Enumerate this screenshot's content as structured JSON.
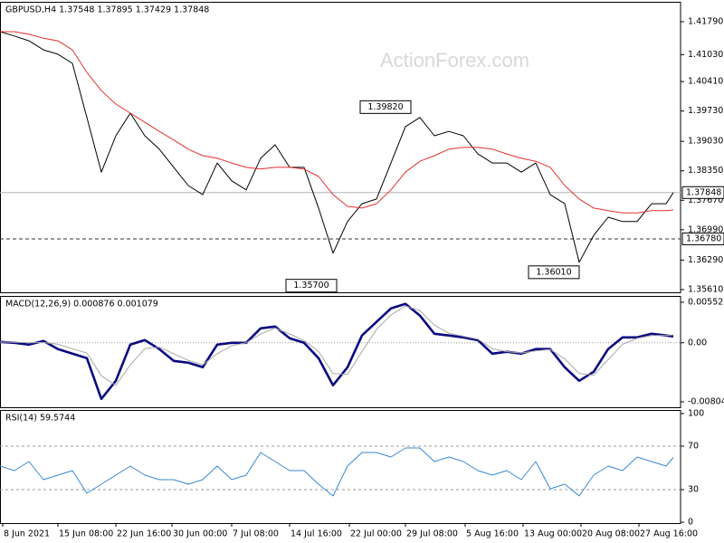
{
  "chart_data": [
    {
      "type": "line",
      "title": "GBPUSD,H4  1.37548 1.37895 1.37429 1.37848",
      "watermark": "ActionForex.com",
      "x": [
        0,
        8,
        16,
        24,
        32,
        40,
        48,
        56,
        64,
        72,
        80,
        88,
        96,
        104,
        112,
        120,
        128,
        136,
        144,
        152,
        160,
        168,
        176,
        184,
        192,
        200,
        208,
        216,
        224,
        232,
        240,
        248,
        256,
        264,
        272,
        280,
        288,
        296,
        304,
        312,
        320,
        328,
        336,
        344,
        352,
        360,
        368,
        372
      ],
      "xlim": [
        0,
        376
      ],
      "series": [
        {
          "color": "#000000",
          "values": [
            1.4156,
            1.4146,
            1.4135,
            1.4114,
            1.4104,
            1.4083,
            1.3958,
            1.3832,
            1.3916,
            1.3968,
            1.3916,
            1.3885,
            1.3843,
            1.3801,
            1.378,
            1.3853,
            1.3812,
            1.3791,
            1.3864,
            1.3895,
            1.3843,
            1.3843,
            1.3749,
            1.3645,
            1.3718,
            1.3759,
            1.377,
            1.3853,
            1.3937,
            1.3958,
            1.3916,
            1.3926,
            1.3916,
            1.3874,
            1.3853,
            1.3853,
            1.3832,
            1.3853,
            1.378,
            1.3759,
            1.3624,
            1.3686,
            1.3728,
            1.3718,
            1.3718,
            1.3759,
            1.3759,
            1.37848
          ]
        },
        {
          "color": "#e0302f",
          "values": [
            1.4156,
            1.4156,
            1.415,
            1.4141,
            1.4135,
            1.4114,
            1.4062,
            1.402,
            1.3989,
            1.3968,
            1.3947,
            1.3926,
            1.3906,
            1.3885,
            1.387,
            1.3864,
            1.3853,
            1.3843,
            1.3839,
            1.3843,
            1.3843,
            1.3839,
            1.3822,
            1.378,
            1.3753,
            1.3749,
            1.3759,
            1.3791,
            1.3832,
            1.3857,
            1.387,
            1.3885,
            1.3889,
            1.3889,
            1.3885,
            1.3874,
            1.3864,
            1.3857,
            1.3843,
            1.3801,
            1.377,
            1.3749,
            1.3743,
            1.3738,
            1.3738,
            1.3743,
            1.3743,
            1.3745
          ]
        }
      ],
      "ylim": [
        1.35547,
        1.42249
      ],
      "yticks": [
        {
          "value": 1.4179,
          "label": "1.41790"
        },
        {
          "value": 1.4103,
          "label": "1.41030"
        },
        {
          "value": 1.4041,
          "label": "1.40410"
        },
        {
          "value": 1.3973,
          "label": "1.39730"
        },
        {
          "value": 1.3903,
          "label": "1.39030"
        },
        {
          "value": 1.3835,
          "label": "1.38350"
        },
        {
          "value": 1.3767,
          "label": "1.37670"
        },
        {
          "value": 1.3699,
          "label": "1.36990"
        },
        {
          "value": 1.3629,
          "label": "1.36290"
        },
        {
          "value": 1.3561,
          "label": "1.35610"
        }
      ],
      "hlines": [
        {
          "value": 1.37848,
          "label": "1.37848",
          "style": "solid"
        },
        {
          "value": 1.3678,
          "label": "1.36780",
          "style": "dashed"
        }
      ],
      "annotations": [
        {
          "value": 1.3982,
          "label": "1.39820",
          "x": 227
        },
        {
          "value": 1.357,
          "label": "1.35700",
          "x": 186
        },
        {
          "value": 1.3601,
          "label": "1.36010",
          "x": 320
        }
      ]
    },
    {
      "type": "line",
      "title": "MACD(12,26,9) 0.000876 0.001079",
      "x": [
        0,
        8,
        16,
        24,
        32,
        40,
        48,
        56,
        64,
        72,
        80,
        88,
        96,
        104,
        112,
        120,
        128,
        136,
        144,
        152,
        160,
        168,
        176,
        184,
        192,
        200,
        208,
        216,
        224,
        232,
        240,
        248,
        256,
        264,
        272,
        280,
        288,
        296,
        304,
        312,
        320,
        328,
        336,
        344,
        352,
        360,
        368,
        372
      ],
      "xlim": [
        0,
        376
      ],
      "series": [
        {
          "color": "#0a0a80",
          "values": [
            0.00012,
            0,
            -0.00025,
            0.00025,
            -0.00086,
            -0.00148,
            -0.0021,
            -0.00765,
            -0.00518,
            -0.00025,
            0.00037,
            -0.00086,
            -0.00247,
            -0.00271,
            -0.00333,
            -0.00025,
            0,
            0,
            0.00197,
            0.00222,
            0.00062,
            0,
            -0.0021,
            -0.00579,
            -0.00333,
            0.00099,
            0.00284,
            0.00468,
            0.0053,
            0.0037,
            0.00123,
            0.00099,
            0.00074,
            0.00037,
            -0.00148,
            -0.00123,
            -0.00148,
            -0.00086,
            -0.00086,
            -0.00333,
            -0.00518,
            -0.00395,
            -0.00086,
            0.00074,
            0.00074,
            0.00123,
            0.00099,
            0.000876
          ]
        },
        {
          "color": "#a9a9a9",
          "values": [
            0.0001,
            8e-05,
            0,
            5e-05,
            -0.0002,
            -0.0008,
            -0.0014,
            -0.0045,
            -0.0058,
            -0.003,
            -0.0008,
            -0.0006,
            -0.0015,
            -0.0024,
            -0.003,
            -0.0015,
            -0.0004,
            0,
            0.0012,
            0.002,
            0.0012,
            0.0003,
            -0.0012,
            -0.0042,
            -0.0043,
            -0.0012,
            0.0018,
            0.0038,
            0.005,
            0.0044,
            0.0024,
            0.0013,
            0.0009,
            0.0005,
            -0.0008,
            -0.0012,
            -0.0014,
            -0.0011,
            -0.0009,
            -0.0022,
            -0.0042,
            -0.0044,
            -0.0023,
            -0.0002,
            0.0006,
            0.001,
            0.001,
            0.001079
          ]
        }
      ],
      "ylim": [
        -0.00878,
        0.00638
      ],
      "yticks": [
        0.00552,
        {
          "value": 0,
          "label": "0.00"
        },
        -0.00804
      ],
      "levels": [
        0
      ]
    },
    {
      "type": "line",
      "title": "RSI(14) 59.5744",
      "x": [
        0,
        8,
        16,
        24,
        32,
        40,
        48,
        56,
        64,
        72,
        80,
        88,
        96,
        104,
        112,
        120,
        128,
        136,
        144,
        152,
        160,
        168,
        176,
        184,
        192,
        200,
        208,
        216,
        224,
        232,
        240,
        248,
        256,
        264,
        272,
        280,
        288,
        296,
        304,
        312,
        320,
        328,
        336,
        344,
        352,
        360,
        368,
        372
      ],
      "xlim": [
        0,
        376
      ],
      "series": [
        {
          "color": "#3a88d0",
          "values": [
            51.7,
            47.5,
            55.8,
            39.2,
            43.3,
            47.5,
            26.7,
            35,
            43.3,
            51.7,
            43.3,
            39.2,
            39.2,
            35,
            39.2,
            51.7,
            39.2,
            43.3,
            64.2,
            55.8,
            47.5,
            47.5,
            35,
            24.2,
            51.7,
            64.2,
            64.2,
            60,
            68.3,
            68.3,
            55.8,
            60,
            55.8,
            47.5,
            43.3,
            47.5,
            39.2,
            55.8,
            30.8,
            35,
            24.2,
            43.3,
            51.7,
            47.5,
            60,
            55.8,
            51.7,
            59.5744
          ]
        }
      ],
      "ylim": [
        -0.8,
        103.3
      ],
      "yticks": [
        100,
        70,
        30,
        0
      ],
      "levels": [
        70,
        30
      ],
      "xticks": [
        {
          "value": 1.5,
          "label": "8 Jun 2021"
        },
        {
          "value": 32,
          "label": "15 Jun 08:00"
        },
        {
          "value": 64,
          "label": "22 Jun 16:00"
        },
        {
          "value": 95,
          "label": "30 Jun 00:00"
        },
        {
          "value": 128,
          "label": "7 Jul 08:00"
        },
        {
          "value": 160,
          "label": "14 Jul 16:00"
        },
        {
          "value": 193,
          "label": "22 Jul 00:00"
        },
        {
          "value": 224,
          "label": "29 Jul 08:00"
        },
        {
          "value": 257,
          "label": "5 Aug 16:00"
        },
        {
          "value": 289,
          "label": "13 Aug 00:00"
        },
        {
          "value": 321,
          "label": "20 Aug 08:00"
        },
        {
          "value": 353,
          "label": "27 Aug 16:00"
        }
      ]
    }
  ]
}
